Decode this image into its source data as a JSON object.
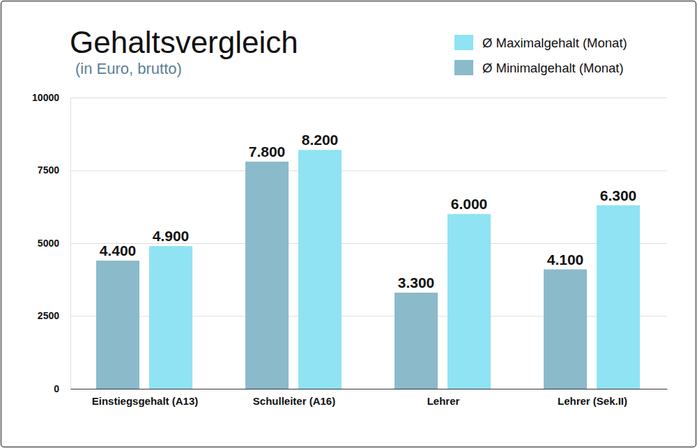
{
  "chart_data": {
    "type": "bar",
    "title": "Gehaltsvergleich",
    "subtitle": "(in Euro, brutto)",
    "categories": [
      "Einstiegsgehalt (A13)",
      "Schulleiter (A16)",
      "Lehrer",
      "Lehrer (Sek.II)"
    ],
    "series": [
      {
        "name": "Ø Minimalgehalt (Monat)",
        "color": "#8bbacb",
        "values": [
          4400,
          7800,
          3300,
          4100
        ],
        "value_labels": [
          "4.400",
          "7.800",
          "3.300",
          "4.100"
        ]
      },
      {
        "name": "Ø Maximalgehalt (Monat)",
        "color": "#8fe3f2",
        "values": [
          4900,
          8200,
          6000,
          6300
        ],
        "value_labels": [
          "4.900",
          "8.200",
          "6.000",
          "6.300"
        ]
      }
    ],
    "ylim": [
      0,
      10000
    ],
    "yticks": [
      0,
      2500,
      5000,
      7500,
      10000
    ],
    "grid": true,
    "legend": "upper right",
    "data_labels": true
  }
}
